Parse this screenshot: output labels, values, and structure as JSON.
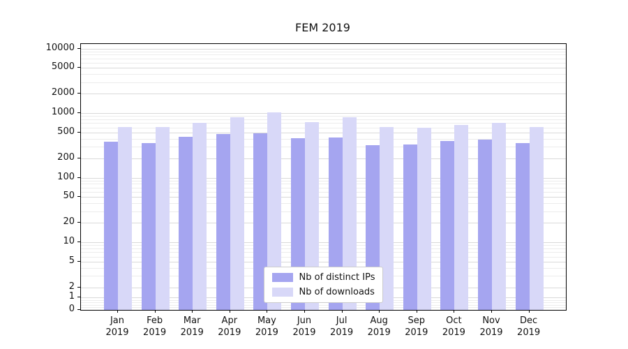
{
  "chart_data": {
    "type": "bar",
    "title": "FEM 2019",
    "months": [
      "Jan",
      "Feb",
      "Mar",
      "Apr",
      "May",
      "Jun",
      "Jul",
      "Aug",
      "Sep",
      "Oct",
      "Nov",
      "Dec"
    ],
    "year": "2019",
    "categories": [
      "Jan 2019",
      "Feb 2019",
      "Mar 2019",
      "Apr 2019",
      "May 2019",
      "Jun 2019",
      "Jul 2019",
      "Aug 2019",
      "Sep 2019",
      "Oct 2019",
      "Nov 2019",
      "Dec 2019"
    ],
    "series": [
      {
        "name": "Nb of distinct IPs",
        "color": "#a5a5f0",
        "values": [
          360,
          340,
          430,
          470,
          490,
          410,
          420,
          315,
          330,
          365,
          385,
          340
        ]
      },
      {
        "name": "Nb of downloads",
        "color": "#d8d8f8",
        "values": [
          610,
          615,
          700,
          870,
          1030,
          730,
          860,
          610,
          590,
          650,
          700,
          610
        ]
      }
    ],
    "yscale": "symlog",
    "y_ticks": [
      0,
      1,
      2,
      5,
      10,
      20,
      50,
      100,
      200,
      500,
      1000,
      2000,
      5000,
      10000
    ],
    "ylim": [
      0,
      12000
    ],
    "grid": "horizontal",
    "legend_position": "lower center"
  }
}
